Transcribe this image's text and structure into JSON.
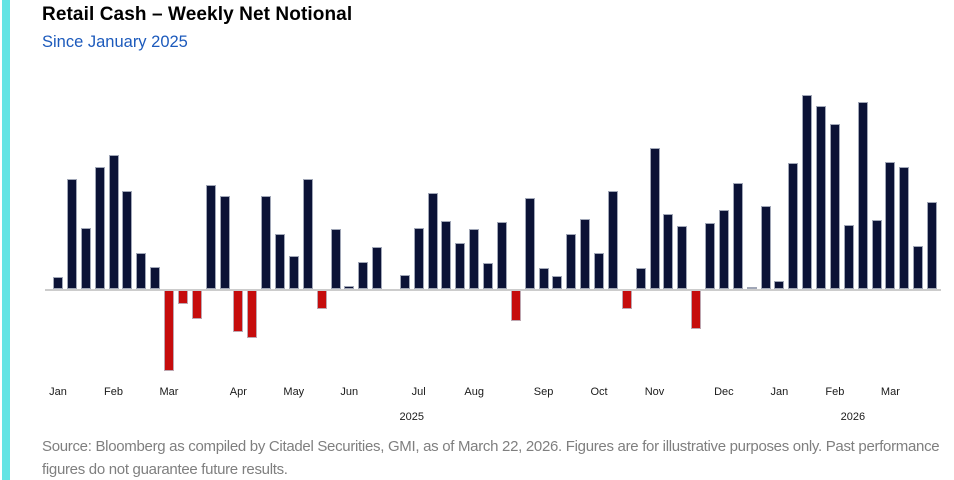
{
  "header": {
    "title": "Retail Cash – Weekly Net Notional",
    "subtitle": "Since January 2025"
  },
  "footer": {
    "source_text": "Source: Bloomberg as compiled by Citadel Securities, GMI, as of March 22, 2026. Figures are for illustrative purposes only. Past performance figures do not guarantee future results."
  },
  "accent": {
    "color": "#64e4e4",
    "subtitle_color": "#1c5abc"
  },
  "chart_data": {
    "type": "bar",
    "title": "Retail Cash – Weekly Net Notional",
    "subtitle": "Since January 2025",
    "xlabel": "",
    "ylabel": "",
    "x_description": "64 consecutive weeks, January 2025 through March 2026",
    "value_unit": "relative net notional (y-axis unlabeled in figure)",
    "grid": false,
    "y_axis_visible": false,
    "legend": null,
    "values": [
      12,
      110,
      61,
      122,
      134,
      98,
      36,
      22,
      -82,
      -15,
      -30,
      104,
      93,
      -43,
      -49,
      93,
      55,
      33,
      110,
      -20,
      60,
      3,
      27,
      42,
      0,
      14,
      61,
      96,
      68,
      46,
      60,
      26,
      67,
      -32,
      91,
      21,
      13,
      55,
      70,
      36,
      98,
      -20,
      21,
      141,
      75,
      63,
      -40,
      66,
      79,
      106,
      2,
      83,
      8,
      126,
      194,
      183,
      165,
      64,
      187,
      69,
      127,
      122,
      43,
      87
    ],
    "month_ticks": [
      {
        "label": "Jan",
        "slot": 1
      },
      {
        "label": "Feb",
        "slot": 5
      },
      {
        "label": "Mar",
        "slot": 9
      },
      {
        "label": "Apr",
        "slot": 14
      },
      {
        "label": "May",
        "slot": 18
      },
      {
        "label": "Jun",
        "slot": 22
      },
      {
        "label": "Jul",
        "slot": 27
      },
      {
        "label": "Aug",
        "slot": 31
      },
      {
        "label": "Sep",
        "slot": 36
      },
      {
        "label": "Oct",
        "slot": 40
      },
      {
        "label": "Nov",
        "slot": 44
      },
      {
        "label": "Dec",
        "slot": 49
      },
      {
        "label": "Jan",
        "slot": 53
      },
      {
        "label": "Feb",
        "slot": 57
      },
      {
        "label": "Mar",
        "slot": 61
      }
    ],
    "year_ticks": [
      {
        "label": "2025",
        "slot": 26.5
      },
      {
        "label": "2026",
        "slot": 58.3
      }
    ],
    "colors": {
      "positive": "#0b1236",
      "negative": "#c60c0c",
      "axis_line": "#cccccc"
    }
  }
}
